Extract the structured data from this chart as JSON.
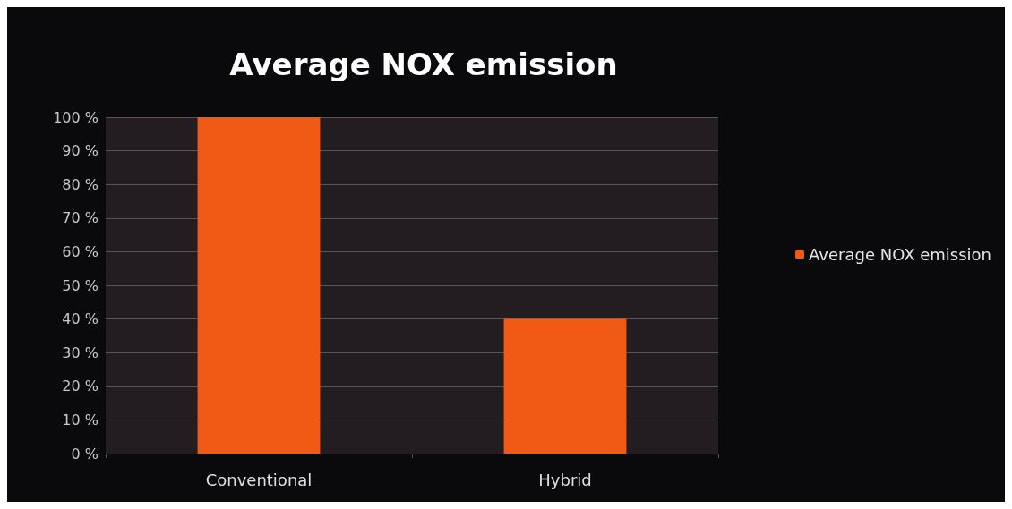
{
  "chart_data": {
    "type": "bar",
    "title": "Average NOX emission",
    "categories": [
      "Conventional",
      "Hybrid"
    ],
    "series": [
      {
        "name": "Average NOX emission",
        "color": "#f05a14",
        "values": [
          100,
          40
        ]
      }
    ],
    "ylim": [
      0,
      100
    ],
    "yticks": [
      {
        "value": 0,
        "label": "0 %"
      },
      {
        "value": 10,
        "label": "10 %"
      },
      {
        "value": 20,
        "label": "20 %"
      },
      {
        "value": 30,
        "label": "30 %"
      },
      {
        "value": 40,
        "label": "40 %"
      },
      {
        "value": 50,
        "label": "50 %"
      },
      {
        "value": 60,
        "label": "60 %"
      },
      {
        "value": 70,
        "label": "70 %"
      },
      {
        "value": 80,
        "label": "80 %"
      },
      {
        "value": 90,
        "label": "90 %"
      },
      {
        "value": 100,
        "label": "100 %"
      }
    ],
    "grid": "y",
    "legend": "right"
  }
}
